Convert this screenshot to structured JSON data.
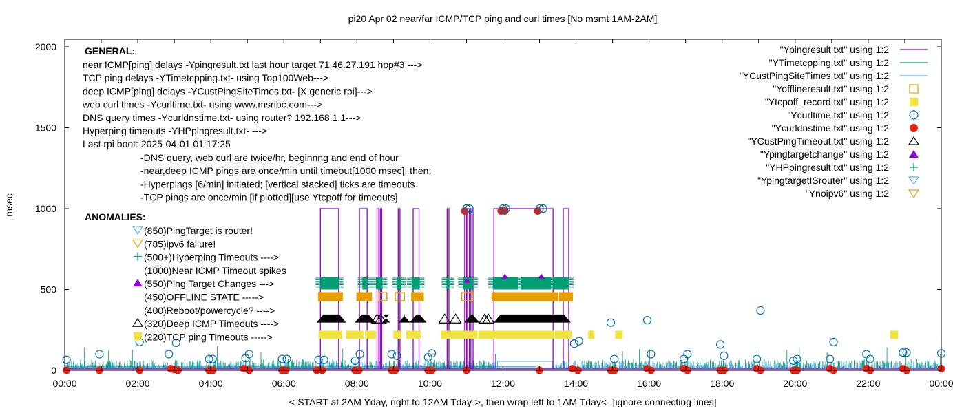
{
  "chart_data": {
    "type": "line",
    "title": "pi20 Apr 02  near/far ICMP/TCP ping and curl times [No msmt 1AM-2AM]",
    "xlabel": "<-START at 2AM Yday, right to 12AM Tday->, then wrap left to 1AM Tday<- [ignore connecting lines]",
    "ylabel": "msec",
    "xlim": [
      0,
      24
    ],
    "ylim": [
      0,
      2000
    ],
    "x_unit": "hours",
    "xticks": [
      {
        "value": 0,
        "label": "00:00"
      },
      {
        "value": 2,
        "label": "02:00"
      },
      {
        "value": 4,
        "label": "04:00"
      },
      {
        "value": 6,
        "label": "06:00"
      },
      {
        "value": 8,
        "label": "08:00"
      },
      {
        "value": 10,
        "label": "10:00"
      },
      {
        "value": 12,
        "label": "12:00"
      },
      {
        "value": 14,
        "label": "14:00"
      },
      {
        "value": 16,
        "label": "16:00"
      },
      {
        "value": 18,
        "label": "18:00"
      },
      {
        "value": 20,
        "label": "20:00"
      },
      {
        "value": 22,
        "label": "22:00"
      },
      {
        "value": 24,
        "label": "00:00"
      }
    ],
    "yticks": [
      {
        "value": 0,
        "label": "0"
      },
      {
        "value": 500,
        "label": "500"
      },
      {
        "value": 1000,
        "label": "1000"
      },
      {
        "value": 1500,
        "label": "1500"
      },
      {
        "value": 2000,
        "label": "2000"
      }
    ],
    "grid": false,
    "legend_position": "top-right",
    "legend": [
      {
        "label": "\"Ypingresult.txt\" using 1:2",
        "style": "line",
        "color": "#9400d3"
      },
      {
        "label": "\"YTimetcpping.txt\" using 1:2",
        "style": "line",
        "color": "#009e73"
      },
      {
        "label": "\"YCustPingSiteTimes.txt\" using 1:2",
        "style": "line",
        "color": "#56b4e9"
      },
      {
        "label": "\"Yofflineresult.txt\" using 1:2",
        "style": "open-square",
        "color": "#e69f00"
      },
      {
        "label": "\"Ytcpoff_record.txt\" using 1:2",
        "style": "filled-square",
        "color": "#f0e442"
      },
      {
        "label": "\"Ycurltime.txt\" using 1:2",
        "style": "open-circle",
        "color": "#0072b2"
      },
      {
        "label": "\"Ycurldnstime.txt\" using 1:2",
        "style": "filled-circle",
        "color": "#e51e10"
      },
      {
        "label": "\"YCustPingTimeout.txt\" using 1:2",
        "style": "open-triangle",
        "color": "#000000"
      },
      {
        "label": "\"Ypingtargetchange\" using 1:2",
        "style": "filled-triangle",
        "color": "#9400d3"
      },
      {
        "label": "\"YHPpingresult.txt\" using 1:2",
        "style": "plus",
        "color": "#009e73"
      },
      {
        "label": "\"YpingtargetISrouter\" using 1:2",
        "style": "open-down-triangle",
        "color": "#56b4e9"
      },
      {
        "label": "\"Ynoipv6\" using 1:2",
        "style": "open-down-triangle",
        "color": "#e69f00"
      }
    ],
    "annotations": {
      "general_heading": "GENERAL:",
      "general_lines": [
        "near ICMP[ping] delays -Ypingresult.txt last hour target 71.46.27.191 hop#3 --->",
        "TCP ping delays -YTimetcpping.txt- using Top100Web--->",
        "deep ICMP[ping] delays -YCustPingSiteTimes.txt- [X generic rpi]--->",
        "web curl times -Ycurltime.txt- using www.msnbc.com--->",
        "DNS query times -Ycurldnstime.txt- using router? 192.168.1.1--->",
        "Hyperping timeouts -YHPpingresult.txt- --->",
        "Last rpi boot: 2025-04-01 01:17:25"
      ],
      "notes": [
        "-DNS query, web curl are twice/hr, beginnng and end of hour",
        "-near,deep ICMP pings are once/min until timeout[1000 msec], then:",
        "  -Hyperpings [6/min] initiated; [vertical stacked] ticks are timeouts",
        "-TCP pings are once/min [if plotted][use Ytcpoff for timeouts]"
      ],
      "anomalies_heading": "ANOMALIES:",
      "anomalies": [
        {
          "text": "(850)PingTarget is router!",
          "marker": "open-down-triangle",
          "color": "#56b4e9"
        },
        {
          "text": "(785)ipv6 failure!",
          "marker": "open-down-triangle",
          "color": "#e69f00"
        },
        {
          "text": "(500+)Hyperping Timeouts ---->",
          "marker": "plus",
          "color": "#009e73"
        },
        {
          "text": "(1000)Near ICMP Timeout spikes",
          "marker": "none",
          "color": "#000000"
        },
        {
          "text": "(550)Ping Target Changes --->",
          "marker": "filled-triangle",
          "color": "#9400d3"
        },
        {
          "text": "(450)OFFLINE STATE ----->",
          "marker": "none",
          "color": "#000000"
        },
        {
          "text": "(400)Reboot/powercycle? ---->",
          "marker": "none",
          "color": "#000000"
        },
        {
          "text": "(320)Deep ICMP Timeouts ---->",
          "marker": "open-triangle",
          "color": "#000000"
        },
        {
          "text": "(220)TCP ping Timeouts ----->",
          "marker": "filled-square",
          "color": "#f0e442"
        }
      ]
    },
    "series": {
      "ping_timeout_spans": {
        "name": "Ypingresult.txt (near ICMP timeout spikes at 1000 msec)",
        "color": "#9400d3",
        "value": 1000,
        "spans": [
          [
            7.0,
            7.5
          ],
          [
            8.07,
            8.28
          ],
          [
            8.55,
            8.6
          ],
          [
            8.64,
            8.68
          ],
          [
            9.13,
            9.18
          ],
          [
            9.54,
            9.7
          ],
          [
            10.47,
            10.52
          ],
          [
            10.95,
            11.0
          ],
          [
            11.03,
            11.08
          ],
          [
            11.12,
            11.18
          ],
          [
            11.75,
            13.37
          ],
          [
            13.65,
            13.8
          ]
        ]
      },
      "hyperping_timeout_spans": {
        "name": "YHPpingresult.txt (hyperping timeouts ~500-575)",
        "color": "#009e73",
        "spans": [
          [
            7.0,
            7.5
          ],
          [
            8.15,
            8.28
          ],
          [
            8.52,
            8.7
          ],
          [
            9.1,
            9.22
          ],
          [
            9.5,
            9.72
          ],
          [
            10.45,
            10.53
          ],
          [
            10.9,
            11.18
          ],
          [
            11.72,
            12.42
          ],
          [
            12.48,
            13.32
          ],
          [
            13.36,
            13.8
          ]
        ]
      },
      "offline_spans": {
        "name": "Yofflineresult.txt (offline state ~450)",
        "color": "#e69f00",
        "spans": [
          [
            6.95,
            7.6
          ],
          [
            8.0,
            8.4
          ],
          [
            8.6,
            8.82
          ],
          [
            9.05,
            9.3
          ],
          [
            9.5,
            9.82
          ],
          [
            10.87,
            11.17
          ],
          [
            11.7,
            13.5
          ],
          [
            13.55,
            13.9
          ]
        ],
        "open_spans": [
          [
            8.6,
            8.82
          ],
          [
            9.05,
            9.3
          ],
          [
            10.87,
            11.17
          ]
        ]
      },
      "deep_icmp_timeout_spans": {
        "name": "YCustPingTimeout.txt (deep ICMP timeouts ~320)",
        "color": "#000000",
        "filled_spans": [
          [
            6.95,
            7.65
          ],
          [
            8.0,
            8.45
          ],
          [
            8.75,
            8.85
          ],
          [
            9.2,
            9.4
          ],
          [
            9.5,
            9.85
          ],
          [
            11.0,
            11.3
          ],
          [
            11.8,
            13.8
          ]
        ],
        "open_triangles_at": [
          8.55,
          8.65,
          10.4,
          10.7,
          11.5,
          11.6
        ]
      },
      "tcp_timeout_spans": {
        "name": "Ytcpoff_record.txt (TCP ping timeouts ~220)",
        "color": "#f0e442",
        "spans": [
          [
            6.95,
            7.6
          ],
          [
            7.7,
            8.18
          ],
          [
            8.22,
            8.52
          ],
          [
            9.0,
            9.22
          ],
          [
            9.35,
            9.75
          ],
          [
            10.3,
            11.3
          ],
          [
            11.32,
            13.4
          ],
          [
            13.42,
            13.88
          ],
          [
            14.33,
            14.5
          ],
          [
            15.07,
            15.28
          ],
          [
            22.6,
            22.82
          ]
        ]
      },
      "curltime": {
        "name": "Ycurltime.txt",
        "color": "#0072b2",
        "points": [
          [
            0.05,
            65
          ],
          [
            0.95,
            100
          ],
          [
            2.05,
            175
          ],
          [
            2.85,
            100
          ],
          [
            3.05,
            170
          ],
          [
            3.95,
            70
          ],
          [
            4.05,
            70
          ],
          [
            4.95,
            75
          ],
          [
            5.05,
            100
          ],
          [
            5.95,
            70
          ],
          [
            6.08,
            70
          ],
          [
            6.95,
            65
          ],
          [
            7.1,
            65
          ],
          [
            7.95,
            60
          ],
          [
            8.08,
            100
          ],
          [
            8.95,
            100
          ],
          [
            9.1,
            90
          ],
          [
            9.95,
            80
          ],
          [
            10.05,
            105
          ],
          [
            11.0,
            1000
          ],
          [
            11.08,
            1000
          ],
          [
            12.0,
            1000
          ],
          [
            12.08,
            1000
          ],
          [
            13.0,
            1000
          ],
          [
            13.1,
            1000
          ],
          [
            13.95,
            165
          ],
          [
            14.08,
            180
          ],
          [
            14.95,
            295
          ],
          [
            15.05,
            70
          ],
          [
            15.95,
            310
          ],
          [
            16.05,
            100
          ],
          [
            16.95,
            70
          ],
          [
            17.05,
            100
          ],
          [
            17.95,
            160
          ],
          [
            18.05,
            90
          ],
          [
            18.95,
            70
          ],
          [
            19.05,
            370
          ],
          [
            19.95,
            60
          ],
          [
            20.05,
            70
          ],
          [
            20.95,
            70
          ],
          [
            21.05,
            175
          ],
          [
            21.95,
            100
          ],
          [
            22.05,
            70
          ],
          [
            22.95,
            110
          ],
          [
            23.05,
            110
          ],
          [
            24.0,
            105
          ]
        ]
      },
      "curldnstime": {
        "name": "Ycurldnstime.txt",
        "color": "#e51e10",
        "points": [
          [
            0.05,
            0
          ],
          [
            0.95,
            0
          ],
          [
            2.05,
            0
          ],
          [
            2.9,
            10
          ],
          [
            3.0,
            5
          ],
          [
            3.1,
            0
          ],
          [
            3.95,
            0
          ],
          [
            4.05,
            0
          ],
          [
            4.9,
            10
          ],
          [
            5.05,
            0
          ],
          [
            5.95,
            0
          ],
          [
            6.05,
            0
          ],
          [
            6.9,
            0
          ],
          [
            7.05,
            0
          ],
          [
            7.95,
            0
          ],
          [
            8.05,
            0
          ],
          [
            8.95,
            0
          ],
          [
            9.05,
            0
          ],
          [
            9.95,
            0
          ],
          [
            10.05,
            0
          ],
          [
            10.95,
            985
          ],
          [
            11.0,
            0
          ],
          [
            11.95,
            985
          ],
          [
            12.05,
            985
          ],
          [
            12.95,
            985
          ],
          [
            13.0,
            0
          ],
          [
            13.9,
            10
          ],
          [
            14.05,
            0
          ],
          [
            14.95,
            0
          ],
          [
            15.05,
            0
          ],
          [
            15.95,
            10
          ],
          [
            16.05,
            0
          ],
          [
            16.95,
            10
          ],
          [
            17.05,
            0
          ],
          [
            17.95,
            0
          ],
          [
            18.05,
            0
          ],
          [
            18.95,
            10
          ],
          [
            19.05,
            0
          ],
          [
            19.95,
            0
          ],
          [
            20.05,
            0
          ],
          [
            20.95,
            10
          ],
          [
            21.05,
            0
          ],
          [
            21.95,
            10
          ],
          [
            22.05,
            0
          ],
          [
            22.95,
            10
          ],
          [
            23.05,
            0
          ],
          [
            24.0,
            10
          ]
        ]
      },
      "pingtargetchange": {
        "name": "Ypingtargetchange",
        "color": "#9400d3",
        "points": [
          [
            11.02,
            555
          ],
          [
            12.05,
            580
          ],
          [
            13.05,
            580
          ]
        ]
      },
      "baseline_noise": {
        "name": "YTimetcpping.txt / YCustPingSiteTimes.txt baseline",
        "tcp_color": "#009e73",
        "deep_color": "#56b4e9",
        "typical_range": [
          10,
          60
        ]
      }
    }
  }
}
